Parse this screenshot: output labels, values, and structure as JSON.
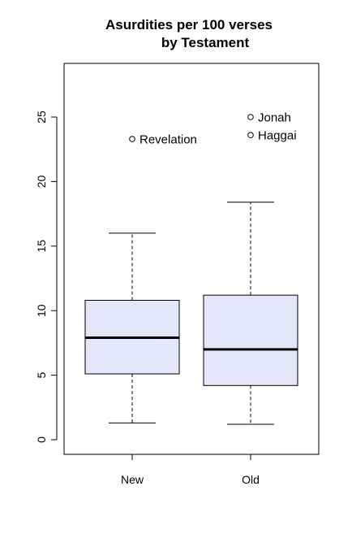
{
  "chart_data": {
    "type": "boxplot",
    "title": [
      "Asurdities per 100 verses",
      "by Testament"
    ],
    "xlabel": "",
    "ylabel": "",
    "ylim": [
      -1,
      29
    ],
    "yticks": [
      0,
      5,
      10,
      15,
      20,
      25
    ],
    "categories": [
      "New",
      "Old"
    ],
    "box_fill": "#e6e6fa",
    "boxes": [
      {
        "name": "New",
        "whisker_low": 1.3,
        "q1": 5.1,
        "median": 7.9,
        "q3": 10.8,
        "whisker_high": 16.0,
        "outliers": [
          {
            "value": 23.3,
            "label": "Revelation"
          }
        ]
      },
      {
        "name": "Old",
        "whisker_low": 1.2,
        "q1": 4.2,
        "median": 7.0,
        "q3": 11.2,
        "whisker_high": 18.4,
        "outliers": [
          {
            "value": 25.0,
            "label": "Jonah"
          },
          {
            "value": 23.6,
            "label": "Haggai"
          }
        ]
      }
    ]
  }
}
